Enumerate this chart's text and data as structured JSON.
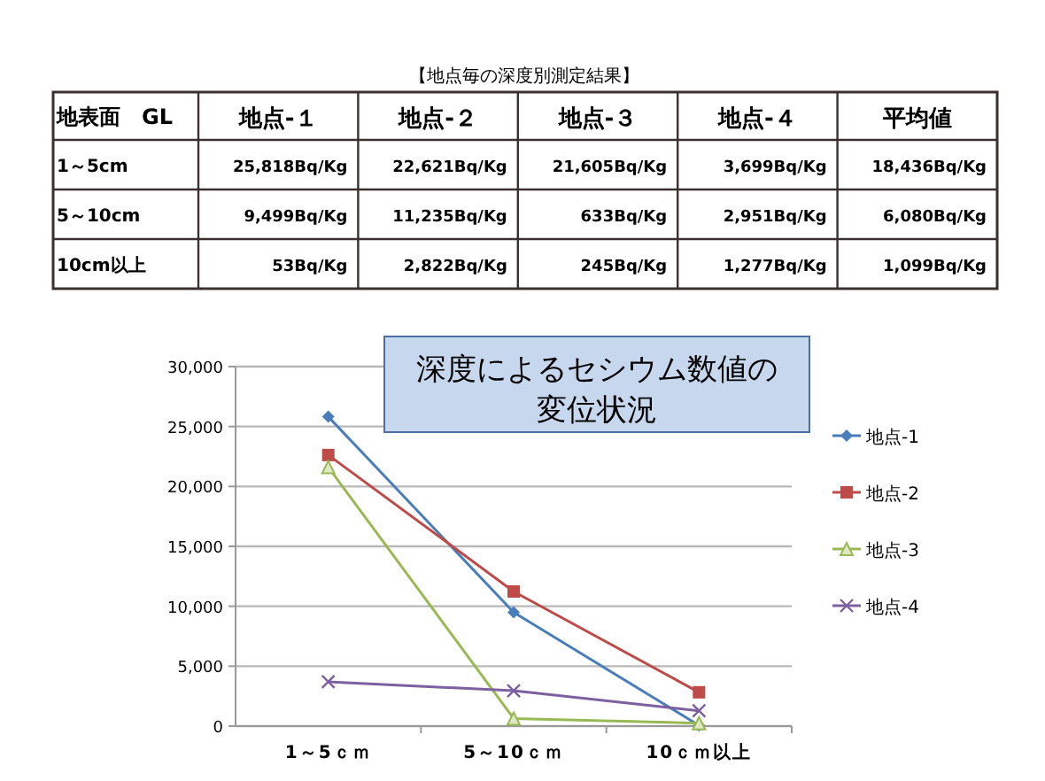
{
  "chart_data": [
    {
      "type": "other",
      "title": "【地点毎の深度別測定結果】",
      "ylabel": "地表面　GL",
      "categories": [
        "地点-１",
        "地点-２",
        "地点-３",
        "地点-４",
        "平均値"
      ],
      "y_categories": [
        "1～5cm",
        "5～10cm",
        "10cm以上"
      ],
      "cell_labels": [
        [
          "25,818Bq/Kg",
          "22,621Bq/Kg",
          "21,605Bq/Kg",
          "3,699Bq/Kg",
          "18,436Bq/Kg"
        ],
        [
          "9,499Bq/Kg",
          "11,235Bq/Kg",
          "633Bq/Kg",
          "2,951Bq/Kg",
          "6,080Bq/Kg"
        ],
        [
          "53Bq/Kg",
          "2,822Bq/Kg",
          "245Bq/Kg",
          "1,277Bq/Kg",
          "1,099Bq/Kg"
        ]
      ]
    },
    {
      "type": "line",
      "title": "深度によるセシウム数値の変位状況",
      "categories": [
        "1～5ｃｍ",
        "5～10ｃｍ",
        "10ｃｍ以上"
      ],
      "series": [
        {
          "name": "地点-1",
          "color": "#4a7ebb",
          "marker": "diamond",
          "values": [
            25818,
            9499,
            53
          ]
        },
        {
          "name": "地点-2",
          "color": "#be4b48",
          "marker": "square",
          "values": [
            22621,
            11235,
            2822
          ]
        },
        {
          "name": "地点-3",
          "color": "#98b954",
          "marker": "triangle",
          "values": [
            21605,
            633,
            245
          ]
        },
        {
          "name": "地点-4",
          "color": "#7d60a0",
          "marker": "cross",
          "values": [
            3699,
            2951,
            1277
          ]
        }
      ],
      "ylim": [
        0,
        30000
      ],
      "yticks": [
        {
          "value": 0,
          "label": "0"
        },
        {
          "value": 5000,
          "label": "5,000"
        },
        {
          "value": 10000,
          "label": "10,000"
        },
        {
          "value": 15000,
          "label": "15,000"
        },
        {
          "value": 20000,
          "label": "20,000"
        },
        {
          "value": 25000,
          "label": "25,000"
        },
        {
          "value": 30000,
          "label": "30,000"
        }
      ],
      "grid": "y",
      "legend": "right"
    }
  ]
}
